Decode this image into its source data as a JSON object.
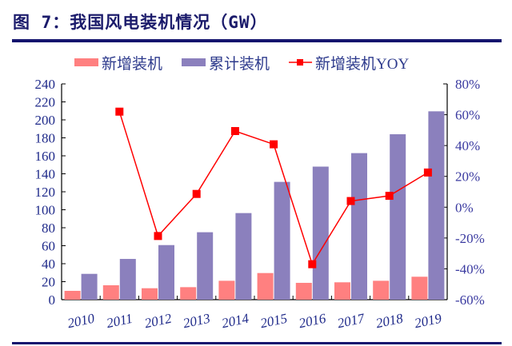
{
  "title": "图 7：我国风电装机情况（GW）",
  "chart_data": {
    "type": "bar",
    "title": "图 7：我国风电装机情况（GW）",
    "categories": [
      "2010",
      "2011",
      "2012",
      "2013",
      "2014",
      "2015",
      "2016",
      "2017",
      "2018",
      "2019"
    ],
    "series": [
      {
        "name": "新增装机",
        "type": "bar",
        "axis": "left",
        "color": "#ff8080",
        "values": [
          9.8,
          16.0,
          12.7,
          13.9,
          21.0,
          29.6,
          18.7,
          19.3,
          21.0,
          25.5
        ]
      },
      {
        "name": "累计装机",
        "type": "bar",
        "axis": "left",
        "color": "#8b80bd",
        "values": [
          28.7,
          45.3,
          60.7,
          75.0,
          96.3,
          131.0,
          148.0,
          163.0,
          184.0,
          209.5
        ]
      },
      {
        "name": "新增装机YOY",
        "type": "line",
        "axis": "right",
        "color": "#ff0000",
        "marker": "square",
        "values": [
          null,
          62,
          -18.7,
          8.6,
          49.4,
          40.8,
          -37,
          4,
          7.4,
          22.5
        ]
      }
    ],
    "y_left": {
      "range": [
        0,
        240
      ],
      "ticks": [
        0,
        20,
        40,
        60,
        80,
        100,
        120,
        140,
        160,
        180,
        200,
        220,
        240
      ]
    },
    "y_right": {
      "range": [
        -60,
        80
      ],
      "unit": "%",
      "ticks": [
        "-60%",
        "-40%",
        "-20%",
        "0%",
        "20%",
        "40%",
        "60%",
        "80%"
      ]
    },
    "grid": false,
    "legend": "top"
  }
}
